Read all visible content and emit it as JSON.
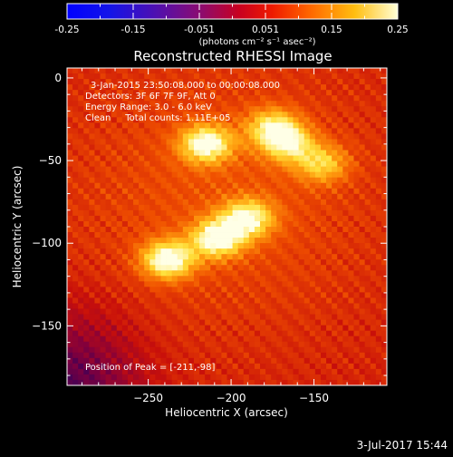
{
  "colorbar": {
    "ticks": [
      "-0.25",
      "-0.15",
      "-0.051",
      "0.051",
      "0.15",
      "0.25"
    ],
    "units": "(photons cm⁻² s⁻¹ asec⁻²)",
    "range": [
      -0.25,
      0.25
    ]
  },
  "chart_data": {
    "type": "heatmap",
    "title": "Reconstructed RHESSI Image",
    "xlabel": "Heliocentric X (arcsec)",
    "ylabel": "Heliocentric Y (arcsec)",
    "xlim": [
      -299,
      -106
    ],
    "ylim": [
      -186,
      6
    ],
    "x_ticks": [
      -250,
      -200,
      -150
    ],
    "x_tick_labels": [
      "−250",
      "−200",
      "−150"
    ],
    "y_ticks": [
      0,
      -50,
      -100,
      -150
    ],
    "y_tick_labels": [
      "0",
      "−50",
      "−100",
      "−150"
    ],
    "grid": false,
    "colormap": "hot (black-blue-purple-red-orange-yellow-white)",
    "peak": [
      -211,
      -98
    ],
    "sources": [
      {
        "x": -215,
        "y": -40,
        "intensity": 0.95
      },
      {
        "x": -175,
        "y": -30,
        "intensity": 0.72
      },
      {
        "x": -165,
        "y": -40,
        "intensity": 0.7
      },
      {
        "x": -145,
        "y": -52,
        "intensity": 0.6
      },
      {
        "x": -238,
        "y": -110,
        "intensity": 1.0
      },
      {
        "x": -208,
        "y": -97,
        "intensity": 0.95
      },
      {
        "x": -190,
        "y": -85,
        "intensity": 0.85
      }
    ],
    "annotations": [
      "3-Jan-2015 23:50:08.000 to 00:00:08.000",
      "Detectors: 3F 6F 7F 9F, Att 0",
      "Energy Range: 3.0 - 6.0 keV",
      "Clean     Total counts: 1.11E+05",
      "Position of Peak = [-211,-98]"
    ]
  },
  "footer": {
    "date": "3-Jul-2017 15:44"
  }
}
